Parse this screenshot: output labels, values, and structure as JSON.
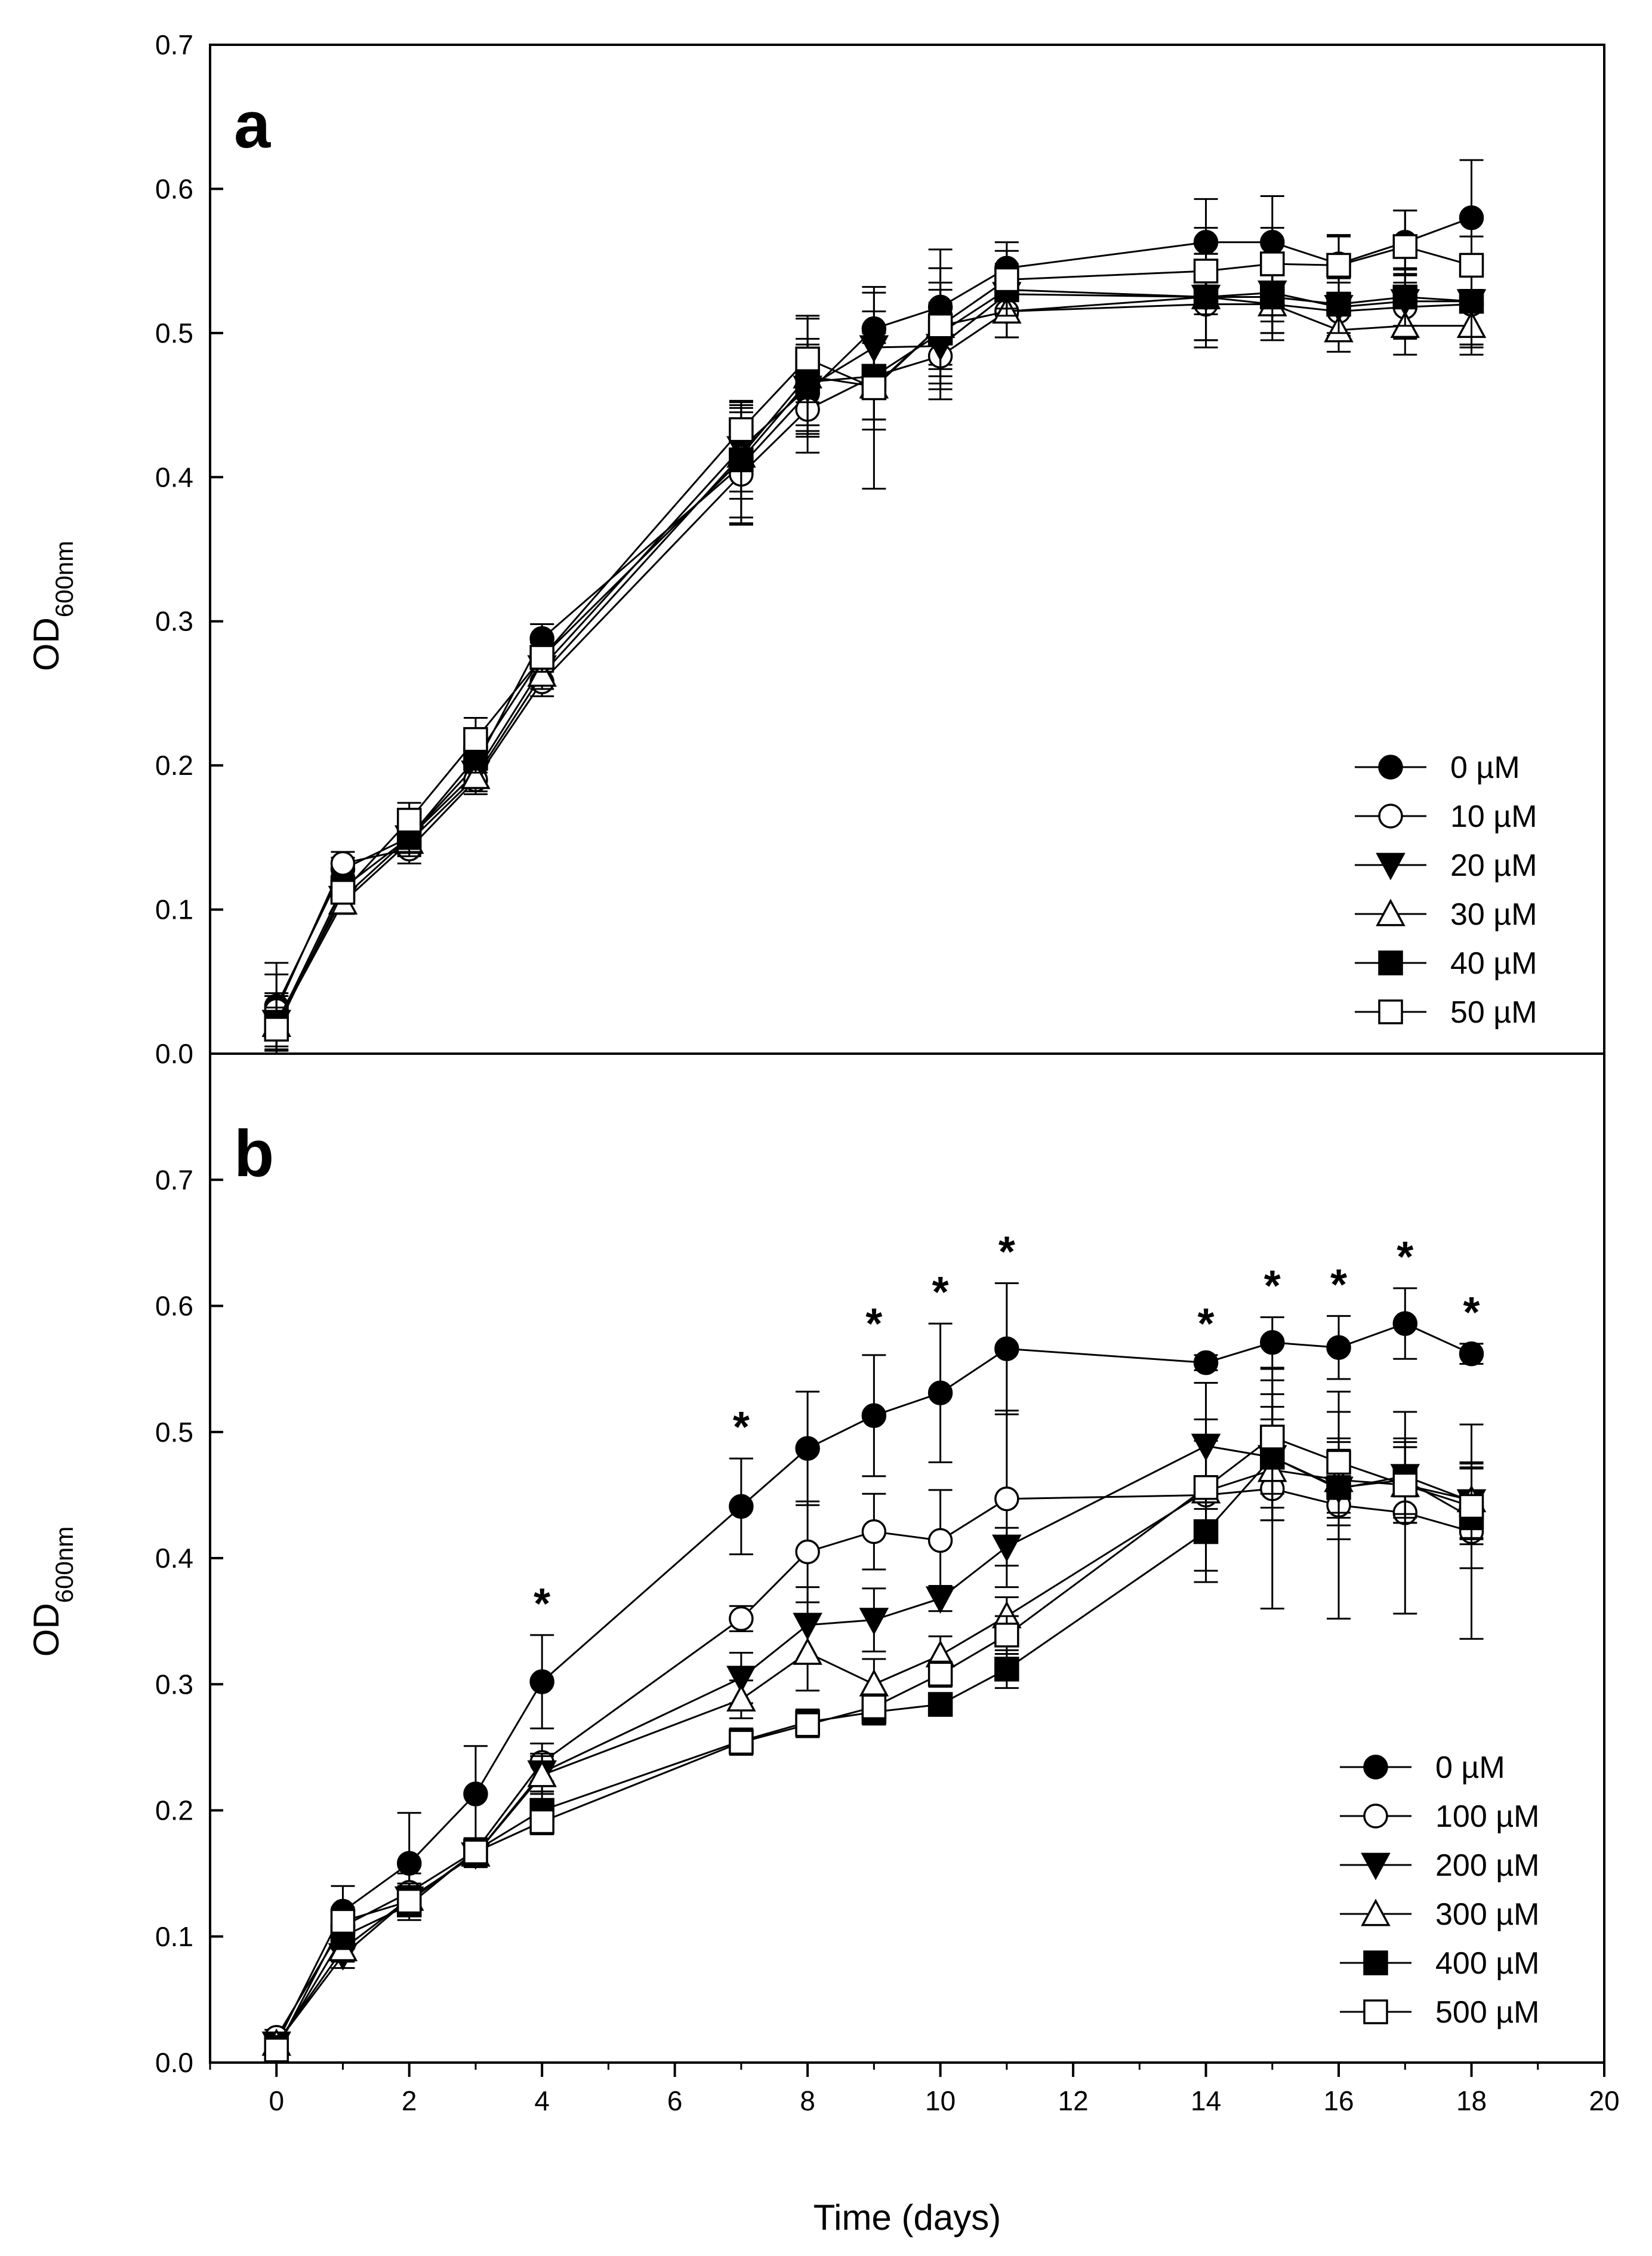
{
  "chart_data": [
    {
      "type": "line",
      "panel_label": "a",
      "ylabel_main": "OD",
      "ylabel_sub": "600nm",
      "ylim": [
        0,
        0.7
      ],
      "yticks": [
        "0.0",
        "0.1",
        "0.2",
        "0.3",
        "0.4",
        "0.5",
        "0.6",
        "0.7"
      ],
      "x": [
        0,
        1,
        2,
        3,
        4,
        7,
        8,
        9,
        10,
        11,
        14,
        15,
        16,
        17,
        18
      ],
      "legend_position": "bottom-right",
      "series": [
        {
          "name": "0 µM",
          "marker": "circle",
          "filled": true,
          "values": [
            0.033,
            0.128,
            0.15,
            0.2,
            0.288,
            0.408,
            0.458,
            0.503,
            0.518,
            0.545,
            0.563,
            0.563,
            0.548,
            0.563,
            0.58
          ],
          "errors": [
            0.03,
            0.008,
            0.012,
            0.012,
            0.01,
            0.04,
            0.03,
            0.025,
            0.04,
            0.018,
            0.03,
            0.032,
            0.02,
            0.022,
            0.04
          ]
        },
        {
          "name": "10 µM",
          "marker": "circle",
          "filled": false,
          "values": [
            0.03,
            0.132,
            0.142,
            0.19,
            0.258,
            0.402,
            0.447,
            0.47,
            0.484,
            0.515,
            0.52,
            0.52,
            0.515,
            0.518,
            0.52
          ],
          "errors": [
            0.025,
            0.008,
            0.01,
            0.01,
            0.01,
            0.035,
            0.03,
            0.03,
            0.03,
            0.018,
            0.03,
            0.025,
            0.02,
            0.022,
            0.03
          ]
        },
        {
          "name": "20 µM",
          "marker": "triangle-down",
          "filled": true,
          "values": [
            0.022,
            0.108,
            0.15,
            0.195,
            0.268,
            0.42,
            0.462,
            0.49,
            0.491,
            0.527,
            0.525,
            0.528,
            0.518,
            0.522,
            0.522
          ],
          "errors": [
            0.02,
            0.008,
            0.01,
            0.01,
            0.01,
            0.03,
            0.03,
            0.025,
            0.03,
            0.018,
            0.03,
            0.02,
            0.02,
            0.022,
            0.03
          ]
        },
        {
          "name": "30 µM",
          "marker": "triangle-up",
          "filled": false,
          "values": [
            0.02,
            0.105,
            0.147,
            0.192,
            0.263,
            0.415,
            0.47,
            0.463,
            0.505,
            0.515,
            0.525,
            0.52,
            0.502,
            0.505,
            0.505
          ],
          "errors": [
            0.02,
            0.008,
            0.01,
            0.01,
            0.01,
            0.03,
            0.04,
            0.03,
            0.03,
            0.018,
            0.03,
            0.02,
            0.015,
            0.02,
            0.02
          ]
        },
        {
          "name": "40 µM",
          "marker": "square",
          "filled": true,
          "values": [
            0.02,
            0.115,
            0.15,
            0.205,
            0.275,
            0.412,
            0.466,
            0.47,
            0.5,
            0.53,
            0.525,
            0.525,
            0.52,
            0.525,
            0.522
          ],
          "errors": [
            0.02,
            0.008,
            0.01,
            0.01,
            0.01,
            0.04,
            0.03,
            0.03,
            0.03,
            0.018,
            0.03,
            0.025,
            0.02,
            0.02,
            0.03
          ]
        },
        {
          "name": "50 µM",
          "marker": "square",
          "filled": false,
          "values": [
            0.017,
            0.112,
            0.162,
            0.218,
            0.275,
            0.433,
            0.482,
            0.462,
            0.505,
            0.537,
            0.543,
            0.548,
            0.547,
            0.56,
            0.547
          ],
          "errors": [
            0.015,
            0.008,
            0.012,
            0.015,
            0.01,
            0.02,
            0.03,
            0.07,
            0.04,
            0.02,
            0.03,
            0.025,
            0.02,
            0.025,
            0.02
          ]
        }
      ]
    },
    {
      "type": "line",
      "panel_label": "b",
      "ylabel_main": "OD",
      "ylabel_sub": "600nm",
      "xlabel": "Time (days)",
      "ylim": [
        0,
        0.8
      ],
      "xlim": [
        -1,
        20
      ],
      "yticks": [
        "0.0",
        "0.1",
        "0.2",
        "0.3",
        "0.4",
        "0.5",
        "0.6",
        "0.7"
      ],
      "xticks": [
        "0",
        "2",
        "4",
        "6",
        "8",
        "10",
        "12",
        "14",
        "16",
        "18",
        "20"
      ],
      "x": [
        0,
        1,
        2,
        3,
        4,
        7,
        8,
        9,
        10,
        11,
        14,
        15,
        16,
        17,
        18
      ],
      "legend_position": "bottom-right",
      "significance_marker": "*",
      "significance_days": [
        4,
        7,
        9,
        10,
        11,
        14,
        15,
        16,
        17,
        18
      ],
      "series": [
        {
          "name": "0 µM",
          "marker": "circle",
          "filled": true,
          "values": [
            0.015,
            0.12,
            0.158,
            0.213,
            0.302,
            0.441,
            0.487,
            0.513,
            0.531,
            0.566,
            0.555,
            0.571,
            0.567,
            0.586,
            0.562
          ],
          "errors": [
            0.008,
            0.02,
            0.04,
            0.038,
            0.037,
            0.038,
            0.045,
            0.048,
            0.055,
            0.052,
            0.006,
            0.02,
            0.025,
            0.028,
            0.008
          ]
        },
        {
          "name": "100 µM",
          "marker": "circle",
          "filled": false,
          "values": [
            0.02,
            0.108,
            0.135,
            0.168,
            0.238,
            0.352,
            0.405,
            0.421,
            0.414,
            0.447,
            0.45,
            0.455,
            0.442,
            0.436,
            0.421
          ],
          "errors": [
            0.006,
            0.015,
            0.015,
            0.01,
            0.015,
            0.01,
            0.04,
            0.03,
            0.04,
            0.07,
            0.06,
            0.095,
            0.09,
            0.08,
            0.085
          ]
        },
        {
          "name": "200 µM",
          "marker": "triangle-down",
          "filled": true,
          "values": [
            0.015,
            0.085,
            0.13,
            0.165,
            0.23,
            0.305,
            0.347,
            0.351,
            0.368,
            0.409,
            0.489,
            0.48,
            0.455,
            0.465,
            0.445
          ],
          "errors": [
            0.006,
            0.01,
            0.012,
            0.01,
            0.015,
            0.02,
            0.03,
            0.025,
            0.01,
            0.015,
            0.05,
            0.05,
            0.04,
            0.03,
            0.03
          ]
        },
        {
          "name": "300 µM",
          "marker": "triangle-up",
          "filled": false,
          "values": [
            0.015,
            0.09,
            0.13,
            0.165,
            0.228,
            0.288,
            0.325,
            0.3,
            0.323,
            0.354,
            0.453,
            0.47,
            0.462,
            0.458,
            0.446
          ],
          "errors": [
            0.006,
            0.01,
            0.012,
            0.01,
            0.015,
            0.015,
            0.03,
            0.02,
            0.015,
            0.015,
            0.04,
            0.04,
            0.03,
            0.03,
            0.03
          ]
        },
        {
          "name": "400 µM",
          "marker": "square",
          "filled": true,
          "values": [
            0.012,
            0.1,
            0.125,
            0.168,
            0.2,
            0.255,
            0.27,
            0.278,
            0.284,
            0.312,
            0.421,
            0.48,
            0.456,
            0.462,
            0.432
          ],
          "errors": [
            0.006,
            0.01,
            0.012,
            0.01,
            0.015,
            0.01,
            0.01,
            0.01,
            0.008,
            0.015,
            0.04,
            0.04,
            0.03,
            0.03,
            0.04
          ]
        },
        {
          "name": "500 µM",
          "marker": "square",
          "filled": false,
          "values": [
            0.01,
            0.112,
            0.128,
            0.167,
            0.191,
            0.254,
            0.268,
            0.282,
            0.308,
            0.339,
            0.456,
            0.496,
            0.476,
            0.458,
            0.441
          ],
          "errors": [
            0.006,
            0.01,
            0.012,
            0.01,
            0.01,
            0.01,
            0.01,
            0.01,
            0.01,
            0.015,
            0.04,
            0.045,
            0.04,
            0.03,
            0.03
          ]
        }
      ]
    }
  ]
}
